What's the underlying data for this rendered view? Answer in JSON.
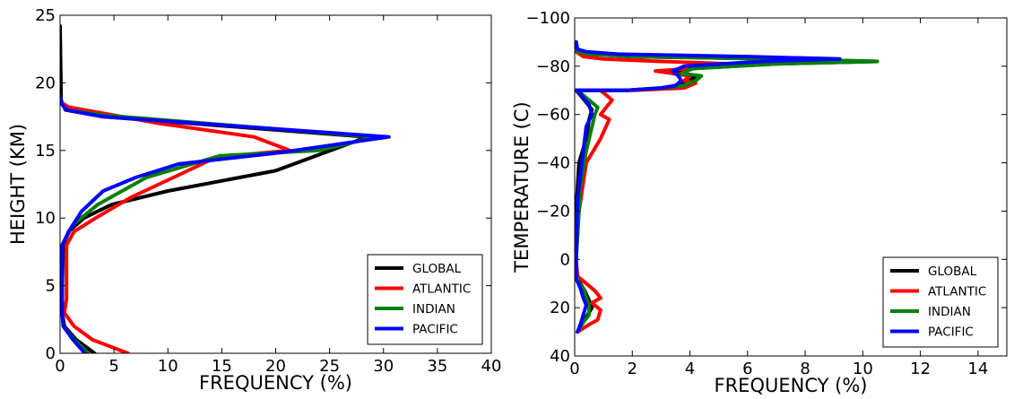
{
  "chart_data": [
    {
      "type": "line",
      "title": "",
      "xlabel": "FREQUENCY (%)",
      "ylabel": "HEIGHT (KM)",
      "xlim": [
        0,
        40
      ],
      "ylim": [
        0,
        25
      ],
      "y_inverted": false,
      "x_ticks": [
        0,
        5,
        10,
        15,
        20,
        25,
        30,
        35,
        40
      ],
      "y_ticks": [
        0,
        5,
        10,
        15,
        20,
        25
      ],
      "legend_position": "lower-right",
      "grid": false,
      "series": [
        {
          "name": "GLOBAL",
          "color": "#000000",
          "x": [
            3.2,
            1.5,
            0.4,
            0.2,
            0.2,
            0.3,
            0.8,
            2.2,
            4.8,
            10,
            20,
            28.5,
            4,
            0.5,
            0.1,
            0
          ],
          "y": [
            0,
            1,
            2,
            3,
            5,
            8,
            9,
            10,
            11,
            12,
            13.5,
            16,
            17.5,
            18,
            18.7,
            24.2
          ]
        },
        {
          "name": "ATLANTIC",
          "color": "#ff0000",
          "x": [
            6.3,
            3,
            1.3,
            0.4,
            0.6,
            0.6,
            0.6,
            1.3,
            3.3,
            6.5,
            10.5,
            14.5,
            21.3,
            18,
            9.2,
            0.8,
            0
          ],
          "y": [
            0,
            1,
            2,
            3,
            4,
            6,
            8,
            9,
            10,
            11.5,
            13,
            14.5,
            15,
            16,
            17,
            18.2,
            18.6
          ]
        },
        {
          "name": "INDIAN",
          "color": "#008000",
          "x": [
            2.6,
            1.3,
            0.3,
            0.2,
            0.2,
            0.2,
            1.2,
            3.5,
            8,
            14.8,
            24,
            29.3,
            4.2,
            0.6,
            0.1,
            0
          ],
          "y": [
            0,
            1,
            2,
            3,
            5,
            8,
            9.5,
            11,
            13,
            14.6,
            15,
            16,
            17.6,
            18,
            18.5,
            19
          ]
        },
        {
          "name": "PACIFIC",
          "color": "#0000ff",
          "x": [
            2.3,
            1.2,
            0.3,
            0.2,
            0.2,
            0.2,
            0.8,
            2,
            4,
            7,
            11,
            20,
            30.5,
            4,
            0.6,
            0.1,
            0
          ],
          "y": [
            0,
            1,
            2,
            3,
            5,
            8,
            9,
            10.5,
            12,
            13,
            14,
            14.8,
            16,
            17.5,
            18,
            18.5,
            19
          ]
        }
      ]
    },
    {
      "type": "line",
      "title": "",
      "xlabel": "FREQUENCY (%)",
      "ylabel": "TEMPERATURE (C)",
      "xlim": [
        0,
        15
      ],
      "ylim": [
        -100,
        40
      ],
      "y_inverted": true,
      "x_ticks": [
        0,
        2,
        4,
        6,
        8,
        10,
        12,
        14
      ],
      "y_ticks": [
        -100,
        -80,
        -60,
        -40,
        -20,
        0,
        20,
        40
      ],
      "legend_position": "lower-right",
      "grid": false,
      "series": [
        {
          "name": "GLOBAL",
          "color": "#000000",
          "x": [
            0.1,
            0.2,
            0.35,
            0.6,
            0.5,
            0.35,
            0.2,
            0.05,
            0.05,
            0.05,
            0.15,
            0.4,
            0.5,
            0.6,
            0.4,
            0.2,
            0.05
          ],
          "y": [
            30,
            27,
            25,
            20,
            17,
            13,
            10,
            5,
            0,
            -20,
            -40,
            -50,
            -58,
            -62,
            -65,
            -68,
            -70
          ]
        },
        {
          "name": "ATLANTIC",
          "color": "#ff0000",
          "x": [
            0.1,
            0.5,
            0.8,
            0.9,
            0.6,
            0.9,
            0.7,
            0.4,
            0.1,
            0.05,
            0.15,
            0.4,
            0.9,
            1.2,
            0.9,
            1.1,
            1.3,
            0.9
          ],
          "y": [
            30,
            27,
            25,
            21,
            18,
            16,
            13,
            10,
            7,
            0,
            -20,
            -40,
            -50,
            -58,
            -60,
            -63,
            -66,
            -70
          ]
        },
        {
          "name": "INDIAN",
          "color": "#008000",
          "x": [
            0.1,
            0.3,
            0.5,
            0.5,
            0.4,
            0.3,
            0.1,
            0.05,
            0.05,
            0.2,
            0.4,
            0.6,
            0.7,
            0.8,
            0.5,
            0.2,
            0.05
          ],
          "y": [
            30,
            26,
            23,
            19,
            16,
            12,
            9,
            5,
            0,
            -30,
            -45,
            -55,
            -60,
            -63,
            -66,
            -69,
            -70
          ]
        },
        {
          "name": "PACIFIC",
          "color": "#0000ff",
          "x": [
            0.1,
            0.2,
            0.3,
            0.4,
            0.3,
            0.2,
            0.05,
            0.05,
            0.05,
            0.1,
            0.3,
            0.4,
            0.6,
            0.5,
            0.3,
            0.1
          ],
          "y": [
            30,
            27,
            23,
            19,
            16,
            12,
            8,
            5,
            0,
            -25,
            -45,
            -55,
            -60,
            -64,
            -67,
            -70
          ]
        }
      ]
    }
  ],
  "chart_data_upper": [
    {
      "name": "GLOBAL",
      "x": [
        0.05,
        1.8,
        3.0,
        3.6,
        4.0,
        4.2,
        3.5,
        4.0,
        7.0,
        10.5,
        7.0,
        2.0,
        0.5,
        0.1,
        0.05
      ],
      "y": [
        -70,
        -70,
        -71,
        -72,
        -74,
        -76,
        -77,
        -79,
        -81,
        -82,
        -83,
        -84,
        -85,
        -86,
        -90
      ]
    },
    {
      "name": "ATLANTIC",
      "x": [
        0.05,
        2.0,
        3.8,
        4.0,
        4.2,
        3.8,
        4.0,
        2.8,
        4.0,
        5.5,
        3.0,
        1.0,
        0.3,
        0.05,
        0.05
      ],
      "y": [
        -70,
        -70,
        -71,
        -72,
        -73,
        -74,
        -76,
        -78,
        -79,
        -81,
        -82,
        -83,
        -84,
        -86,
        -88
      ]
    },
    {
      "name": "INDIAN",
      "x": [
        0.05,
        1.8,
        3.0,
        3.8,
        4.2,
        4.4,
        3.7,
        4.1,
        7.0,
        10.5,
        7.0,
        2.0,
        0.5,
        0.1,
        0.05
      ],
      "y": [
        -70,
        -70,
        -71,
        -72,
        -74,
        -76,
        -77,
        -79,
        -81,
        -82,
        -83,
        -84,
        -85,
        -86,
        -90
      ]
    },
    {
      "name": "PACIFIC",
      "x": [
        0.05,
        1.8,
        3.0,
        3.5,
        3.7,
        3.6,
        3.4,
        3.8,
        6.5,
        9.2,
        6.0,
        1.5,
        0.4,
        0.1,
        0.05
      ],
      "y": [
        -70,
        -70,
        -71,
        -72,
        -74,
        -76,
        -78,
        -80,
        -82,
        -83,
        -84,
        -85,
        -86,
        -87,
        -90
      ]
    }
  ],
  "legend": {
    "items": [
      {
        "name": "GLOBAL",
        "color": "#000000"
      },
      {
        "name": "ATLANTIC",
        "color": "#ff0000"
      },
      {
        "name": "INDIAN",
        "color": "#008000"
      },
      {
        "name": "PACIFIC",
        "color": "#0000ff"
      }
    ]
  }
}
